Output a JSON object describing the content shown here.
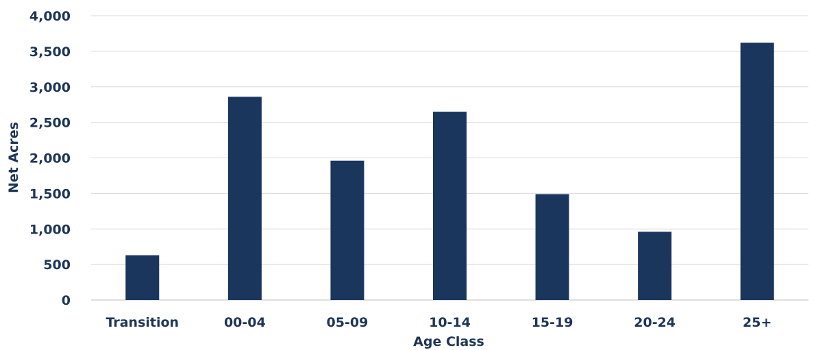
{
  "chart_data": {
    "type": "bar",
    "title": "",
    "xlabel": "Age Class",
    "ylabel": "Net Acres",
    "categories": [
      "Transition",
      "00-04",
      "05-09",
      "10-14",
      "15-19",
      "20-24",
      "25+"
    ],
    "values": [
      630,
      2860,
      1960,
      2650,
      1490,
      960,
      3620
    ],
    "ylim": [
      0,
      4000
    ],
    "yticks": [
      0,
      500,
      1000,
      1500,
      2000,
      2500,
      3000,
      3500,
      4000
    ],
    "ytick_labels": [
      "0",
      "500",
      "1,000",
      "1,500",
      "2,000",
      "2,500",
      "3,000",
      "3,500",
      "4,000"
    ],
    "grid": true,
    "legend": "none",
    "colors": {
      "bar": "#1b365d",
      "text": "#1d3557",
      "grid": "#d9d9d9"
    }
  }
}
